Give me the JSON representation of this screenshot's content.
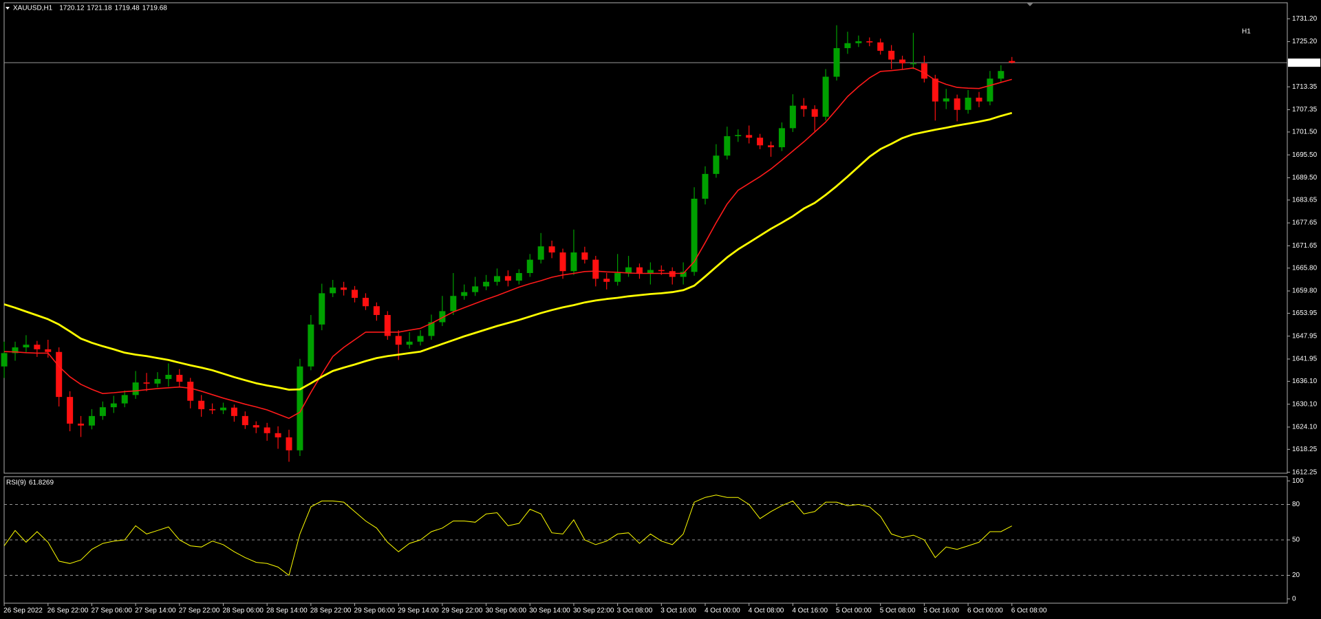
{
  "chart_data": [
    {
      "type": "candlestick",
      "symbol": "XAUUSD,H1",
      "timeframe_label": "H1",
      "up_color": "#00a000",
      "down_color": "#ff1010",
      "categories": [
        "26 Sep 2022",
        null,
        null,
        null,
        "26 Sep 22:00",
        null,
        null,
        null,
        "27 Sep 06:00",
        null,
        null,
        null,
        "27 Sep 14:00",
        null,
        null,
        null,
        "27 Sep 22:00",
        null,
        null,
        null,
        "28 Sep 06:00",
        null,
        null,
        null,
        "28 Sep 14:00",
        null,
        null,
        null,
        "28 Sep 22:00",
        null,
        null,
        null,
        "29 Sep 06:00",
        null,
        null,
        null,
        "29 Sep 14:00",
        null,
        null,
        null,
        "29 Sep 22:00",
        null,
        null,
        null,
        "30 Sep 06:00",
        null,
        null,
        null,
        "30 Sep 14:00",
        null,
        null,
        null,
        "30 Sep 22:00",
        null,
        null,
        null,
        "3 Oct 08:00",
        null,
        null,
        null,
        "3 Oct 16:00",
        null,
        null,
        null,
        "4 Oct 00:00",
        null,
        null,
        null,
        "4 Oct 08:00",
        null,
        null,
        null,
        "4 Oct 16:00",
        null,
        null,
        null,
        "5 Oct 00:00",
        null,
        null,
        null,
        "5 Oct 08:00",
        null,
        null,
        null,
        "5 Oct 16:00",
        null,
        null,
        null,
        "6 Oct 00:00",
        null,
        null,
        null,
        "6 Oct 08:00"
      ],
      "open": [
        1640,
        1643.5,
        1645,
        1645.7,
        1644.5,
        1643.8,
        1632,
        1625,
        1624.5,
        1627,
        1629.3,
        1630.3,
        1632.5,
        1635.8,
        1635.5,
        1636.7,
        1637.8,
        1636,
        1631,
        1628.8,
        1628.5,
        1629.2,
        1627,
        1624.6,
        1624,
        1622.5,
        1621.4,
        1618,
        1640,
        1651,
        1659.2,
        1660.7,
        1660.1,
        1658,
        1655.8,
        1653.5,
        1648,
        1645.7,
        1646.5,
        1648,
        1651.6,
        1654.5,
        1658.5,
        1659.5,
        1661,
        1662.2,
        1663.7,
        1662.5,
        1664.5,
        1668,
        1671.5,
        1669.9,
        1665,
        1669.9,
        1668,
        1663,
        1662.2,
        1664.5,
        1666,
        1664.5,
        1665.3,
        1665,
        1663.5,
        1664.8,
        1684,
        1690.5,
        1695.3,
        1700.4,
        1700.7,
        1700,
        1698,
        1697.5,
        1702.5,
        1708.4,
        1707.5,
        1705.5,
        1716,
        1723.5,
        1724.8,
        1725.3,
        1725,
        1722.8,
        1720.5,
        1719.5,
        1719.5,
        1715.5,
        1709.5,
        1710.3,
        1707.3,
        1710.5,
        1709.5,
        1715.5,
        1720.12
      ],
      "high": [
        1646.5,
        1646.5,
        1648.2,
        1646.7,
        1647,
        1645,
        1633.5,
        1627,
        1628.8,
        1630.8,
        1632.3,
        1633.7,
        1638.8,
        1638.3,
        1638.5,
        1640.8,
        1639.3,
        1637,
        1632.5,
        1630.3,
        1630.5,
        1630,
        1628.2,
        1625.6,
        1625.2,
        1624.3,
        1623.4,
        1642,
        1653.5,
        1661.7,
        1662.7,
        1662.2,
        1661.1,
        1659.2,
        1656.8,
        1654.5,
        1649.5,
        1649,
        1649.5,
        1653.6,
        1658.5,
        1664.5,
        1661.5,
        1663.5,
        1664,
        1665.7,
        1665.2,
        1665.5,
        1669.5,
        1675,
        1673,
        1670.9,
        1675.9,
        1671.4,
        1669,
        1664.5,
        1669.5,
        1669,
        1667,
        1667.3,
        1666.5,
        1666,
        1667.3,
        1687,
        1692.5,
        1698.3,
        1702.9,
        1702.2,
        1703.2,
        1701,
        1699,
        1704,
        1711.4,
        1710.4,
        1708.5,
        1718,
        1729.5,
        1727.8,
        1726.8,
        1726.3,
        1726,
        1724.3,
        1721.5,
        1727.5,
        1721.5,
        1716.5,
        1712.8,
        1711.3,
        1712.5,
        1712,
        1717.5,
        1719,
        1721.18
      ],
      "low": [
        1637,
        1641.5,
        1643.5,
        1642.5,
        1642.3,
        1629.5,
        1623,
        1621.5,
        1623.5,
        1626,
        1627.8,
        1629.3,
        1631.5,
        1633.5,
        1634.5,
        1634.7,
        1634.5,
        1629,
        1626.8,
        1627.5,
        1627.5,
        1625.5,
        1623.6,
        1622.5,
        1620.5,
        1618.4,
        1615,
        1616.5,
        1639,
        1649.5,
        1658.2,
        1658.6,
        1656.8,
        1654.8,
        1652,
        1647,
        1641.7,
        1644.7,
        1645.5,
        1647,
        1650.6,
        1653.5,
        1657.5,
        1658.5,
        1660,
        1661.2,
        1661,
        1661.5,
        1663.5,
        1667,
        1668.4,
        1663,
        1664,
        1667,
        1661,
        1660.2,
        1661.2,
        1663.5,
        1663,
        1661.5,
        1664,
        1661.5,
        1661.5,
        1663.8,
        1682.5,
        1689.5,
        1694.3,
        1698.9,
        1698.5,
        1697,
        1695,
        1696.5,
        1701.5,
        1705.5,
        1701.5,
        1704.5,
        1715,
        1722,
        1723.8,
        1724,
        1721.8,
        1718,
        1718,
        1718,
        1714.5,
        1704.5,
        1707.5,
        1704.3,
        1706.3,
        1708,
        1708.5,
        1714.5,
        1719.48
      ],
      "close": [
        1643.5,
        1645,
        1645.7,
        1644.5,
        1643.8,
        1632,
        1625,
        1624.5,
        1627,
        1629.3,
        1630.3,
        1632.5,
        1635.8,
        1635.5,
        1636.7,
        1637.8,
        1636,
        1631,
        1628.8,
        1628.5,
        1629.2,
        1627,
        1624.6,
        1624,
        1622.5,
        1621.4,
        1618,
        1640,
        1651,
        1659.2,
        1660.7,
        1660.1,
        1658,
        1655.8,
        1653.5,
        1648,
        1645.7,
        1646.5,
        1648,
        1651.6,
        1654.5,
        1658.5,
        1659.5,
        1661,
        1662.2,
        1663.7,
        1662.5,
        1664.5,
        1668,
        1671.5,
        1669.9,
        1665,
        1669.9,
        1668,
        1663,
        1662.2,
        1664.5,
        1666,
        1664.5,
        1665.3,
        1665,
        1663.5,
        1664.8,
        1684,
        1690.5,
        1695.3,
        1700.4,
        1700.7,
        1700,
        1698,
        1697.5,
        1702.5,
        1708.4,
        1707.5,
        1705.5,
        1716,
        1723.5,
        1724.8,
        1725.3,
        1725,
        1722.8,
        1720.5,
        1719.5,
        1719.5,
        1715.5,
        1709.5,
        1710.3,
        1707.3,
        1710.5,
        1709.5,
        1715.5,
        1717.5,
        1719.68
      ],
      "series": [
        {
          "color": "#ff1a1a",
          "values": [
            1643.9,
            1643.8,
            1643.6,
            1643.5,
            1643.5,
            1640,
            1637.3,
            1635.3,
            1634,
            1632.9,
            1633.1,
            1633.4,
            1633.6,
            1633.9,
            1634.2,
            1634.4,
            1634.6,
            1634.3,
            1633.5,
            1632.6,
            1631.7,
            1630.9,
            1630.1,
            1629.4,
            1628.6,
            1627.5,
            1626.4,
            1628,
            1633.2,
            1638,
            1642.6,
            1645,
            1647,
            1649,
            1649,
            1649,
            1649,
            1649.5,
            1650,
            1651.3,
            1652.8,
            1654.3,
            1655.4,
            1656.5,
            1657.6,
            1658.6,
            1659.7,
            1660.8,
            1661.7,
            1662.5,
            1663.4,
            1664,
            1664.4,
            1664.9,
            1665,
            1664.8,
            1664.7,
            1664.5,
            1664.4,
            1664.4,
            1664.4,
            1664.4,
            1664.4,
            1667.5,
            1672.5,
            1677.7,
            1682.6,
            1686.2,
            1688,
            1689.8,
            1691.8,
            1694.1,
            1696.5,
            1698.9,
            1701.5,
            1704.1,
            1707.4,
            1710.8,
            1713.4,
            1715.7,
            1717.4,
            1717.6,
            1717.9,
            1718.3,
            1717,
            1715.1,
            1714,
            1713.2,
            1713,
            1712.9,
            1713.7,
            1714.5,
            1715.3
          ]
        },
        {
          "color": "#ffff00",
          "values": [
            1656.3,
            1655.4,
            1654.4,
            1653.4,
            1652.4,
            1651,
            1649.2,
            1647.3,
            1646.2,
            1645.3,
            1644.5,
            1643.6,
            1643.1,
            1642.7,
            1642.2,
            1641.7,
            1641,
            1640.3,
            1639.7,
            1639,
            1638.1,
            1637.2,
            1636.4,
            1635.6,
            1635,
            1634.5,
            1633.9,
            1634,
            1635.6,
            1637.3,
            1638.8,
            1639.7,
            1640.5,
            1641.4,
            1642.2,
            1642.7,
            1643.1,
            1643.5,
            1643.9,
            1644.9,
            1645.9,
            1646.9,
            1647.9,
            1648.8,
            1649.7,
            1650.6,
            1651.4,
            1652.2,
            1653.1,
            1654,
            1654.8,
            1655.5,
            1656.1,
            1656.8,
            1657.3,
            1657.7,
            1658,
            1658.4,
            1658.7,
            1659,
            1659.2,
            1659.5,
            1660,
            1661.2,
            1663.6,
            1666.1,
            1668.6,
            1670.7,
            1672.5,
            1674.3,
            1676.1,
            1677.7,
            1679.4,
            1681.4,
            1682.9,
            1685,
            1687.3,
            1689.8,
            1692.4,
            1695,
            1697,
            1698.4,
            1699.9,
            1700.9,
            1701.5,
            1702.1,
            1702.6,
            1703.2,
            1703.7,
            1704.2,
            1704.8,
            1705.7,
            1706.5
          ]
        }
      ],
      "ylim": [
        1612.0,
        1735.4
      ],
      "yticks": [
        {
          "value": 1731.2,
          "label": "1731.20"
        },
        {
          "value": 1725.2,
          "label": "1725.20"
        },
        1713.35,
        1707.35,
        {
          "value": 1701.5,
          "label": "1701.50"
        },
        {
          "value": 1695.5,
          "label": "1695.50"
        },
        {
          "value": 1689.5,
          "label": "1689.50"
        },
        1683.65,
        1677.65,
        1671.65,
        {
          "value": 1665.8,
          "label": "1665.80"
        },
        {
          "value": 1659.8,
          "label": "1659.80"
        },
        1653.95,
        1647.95,
        1641.95,
        {
          "value": 1636.1,
          "label": "1636.10"
        },
        {
          "value": 1630.1,
          "label": "1630.10"
        },
        {
          "value": 1624.1,
          "label": "1624.10"
        },
        1618.25,
        1612.25
      ]
    },
    {
      "type": "line",
      "title": "RSI(9)",
      "series": [
        {
          "color": "#ffff00",
          "values": [
            45,
            58,
            48,
            57,
            48,
            32,
            30,
            33,
            42,
            47,
            49,
            50,
            62,
            55,
            58,
            61,
            50,
            45,
            44,
            49,
            46,
            40,
            35,
            31,
            30,
            27,
            20,
            55,
            78,
            83,
            83,
            82,
            74,
            66,
            60,
            48,
            40,
            47,
            50,
            57,
            60,
            66,
            66,
            65,
            72,
            73,
            62,
            64,
            76,
            72,
            56,
            55,
            67,
            50,
            46,
            49,
            55,
            56,
            47,
            55,
            49,
            46,
            55,
            82,
            86,
            88,
            86,
            86,
            80,
            68,
            74,
            79,
            83,
            72,
            74,
            82,
            82,
            79,
            80,
            78,
            70,
            55,
            52,
            54,
            50,
            35,
            44,
            42,
            45,
            48,
            57,
            57,
            61.8269
          ]
        }
      ],
      "ylim": [
        -3.6,
        103.6
      ],
      "yticks": [
        0,
        20,
        50,
        80,
        100
      ],
      "dashed_levels": true
    }
  ]
}
